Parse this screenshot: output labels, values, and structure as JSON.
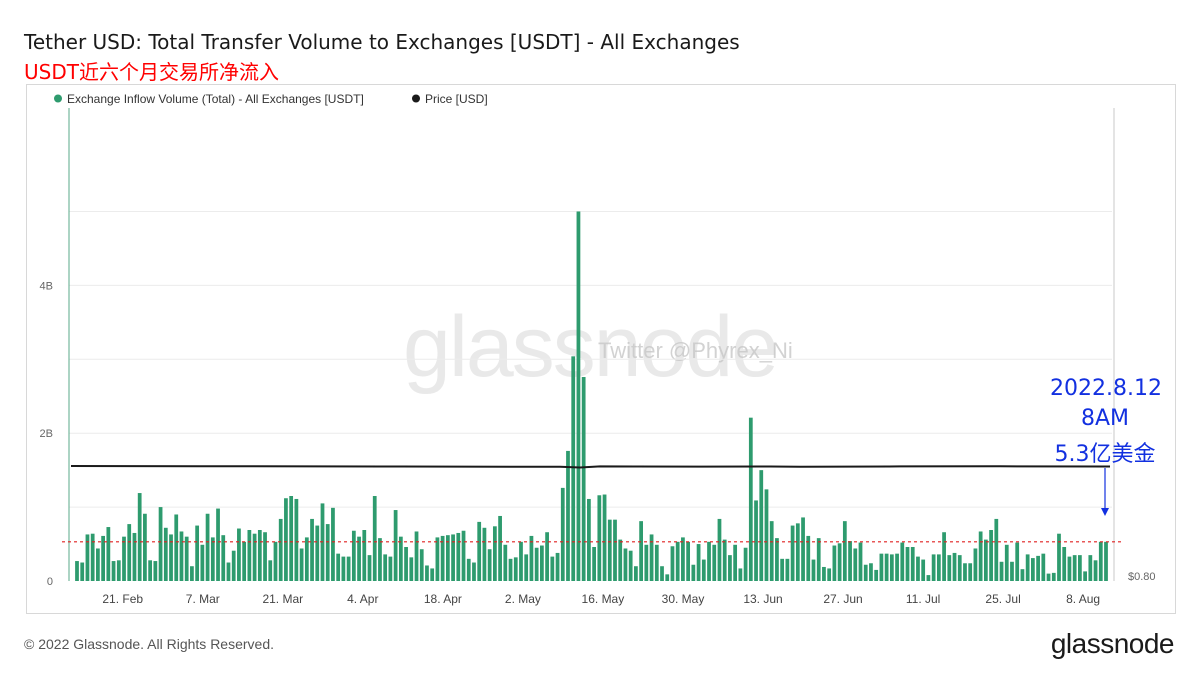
{
  "title": "Tether USD: Total Transfer Volume to Exchanges [USDT] - All Exchanges",
  "subtitle": "USDT近六个月交易所净流入",
  "footer": "© 2022 Glassnode. All Rights Reserved.",
  "logo": "glassnode",
  "watermark": "glassnode",
  "watermark_twitter": "Twitter @Phyrex_Ni",
  "annotation": {
    "line1": "2022.8.12",
    "line2": "8AM",
    "line3": "5.3亿美金"
  },
  "colors": {
    "bars": "#2e9b6e",
    "price": "#1a1a1a",
    "threshold": "#e02020",
    "annotation": "#1230e0",
    "subtitle": "#ff0000"
  },
  "chart_data": {
    "type": "bar",
    "legend_placement": "top-left",
    "grid": true,
    "series": [
      {
        "name": "Exchange Inflow Volume (Total) - All Exchanges [USDT]",
        "type": "bar",
        "color": "#2e9b6e"
      },
      {
        "name": "Price [USD]",
        "type": "line",
        "color": "#1a1a1a"
      }
    ],
    "y_left": {
      "ticks": [
        "0",
        "2B",
        "4B"
      ],
      "tick_values": [
        0,
        2000000000,
        4000000000
      ],
      "range": [
        0,
        6400000000
      ]
    },
    "y_right": {
      "ticks": [
        "$0.80"
      ]
    },
    "x_ticks": [
      "21. Feb",
      "7. Mar",
      "21. Mar",
      "4. Apr",
      "18. Apr",
      "2. May",
      "16. May",
      "30. May",
      "13. Jun",
      "27. Jun",
      "11. Jul",
      "25. Jul",
      "8. Aug"
    ],
    "x_start": "2022-02-13",
    "x_end": "2022-08-12",
    "price_level": 1.0,
    "threshold_value": 530000000,
    "values": [
      0.27,
      0.25,
      0.63,
      0.64,
      0.44,
      0.61,
      0.73,
      0.27,
      0.28,
      0.6,
      0.77,
      0.65,
      1.19,
      0.91,
      0.28,
      0.27,
      1.0,
      0.72,
      0.63,
      0.9,
      0.67,
      0.6,
      0.2,
      0.75,
      0.49,
      0.91,
      0.59,
      0.98,
      0.62,
      0.25,
      0.41,
      0.71,
      0.53,
      0.69,
      0.64,
      0.69,
      0.66,
      0.28,
      0.53,
      0.84,
      1.12,
      1.15,
      1.11,
      0.44,
      0.59,
      0.84,
      0.75,
      1.05,
      0.77,
      0.99,
      0.37,
      0.33,
      0.33,
      0.68,
      0.6,
      0.69,
      0.35,
      1.15,
      0.58,
      0.36,
      0.33,
      0.96,
      0.6,
      0.46,
      0.32,
      0.67,
      0.43,
      0.21,
      0.17,
      0.59,
      0.61,
      0.62,
      0.63,
      0.65,
      0.68,
      0.3,
      0.25,
      0.8,
      0.72,
      0.43,
      0.74,
      0.88,
      0.49,
      0.3,
      0.32,
      0.53,
      0.36,
      0.61,
      0.45,
      0.48,
      0.66,
      0.33,
      0.38,
      1.26,
      1.76,
      3.04,
      5.0,
      2.76,
      1.11,
      0.46,
      1.16,
      1.17,
      0.83,
      0.83,
      0.56,
      0.44,
      0.41,
      0.2,
      0.81,
      0.49,
      0.63,
      0.49,
      0.2,
      0.09,
      0.47,
      0.53,
      0.59,
      0.53,
      0.22,
      0.5,
      0.29,
      0.53,
      0.49,
      0.84,
      0.56,
      0.35,
      0.49,
      0.17,
      0.45,
      2.21,
      1.09,
      1.5,
      1.24,
      0.81,
      0.58,
      0.3,
      0.3,
      0.75,
      0.78,
      0.86,
      0.61,
      0.29,
      0.58,
      0.19,
      0.17,
      0.48,
      0.51,
      0.81,
      0.54,
      0.44,
      0.52,
      0.22,
      0.24,
      0.15,
      0.37,
      0.37,
      0.36,
      0.37,
      0.52,
      0.46,
      0.46,
      0.33,
      0.29,
      0.08,
      0.36,
      0.36,
      0.66,
      0.35,
      0.38,
      0.35,
      0.24,
      0.24,
      0.44,
      0.67,
      0.56,
      0.69,
      0.84,
      0.26,
      0.49,
      0.26,
      0.52,
      0.16,
      0.36,
      0.31,
      0.34,
      0.37,
      0.1,
      0.11,
      0.64,
      0.46,
      0.33,
      0.35,
      0.35,
      0.13,
      0.35,
      0.28,
      0.53,
      0.53
    ]
  }
}
